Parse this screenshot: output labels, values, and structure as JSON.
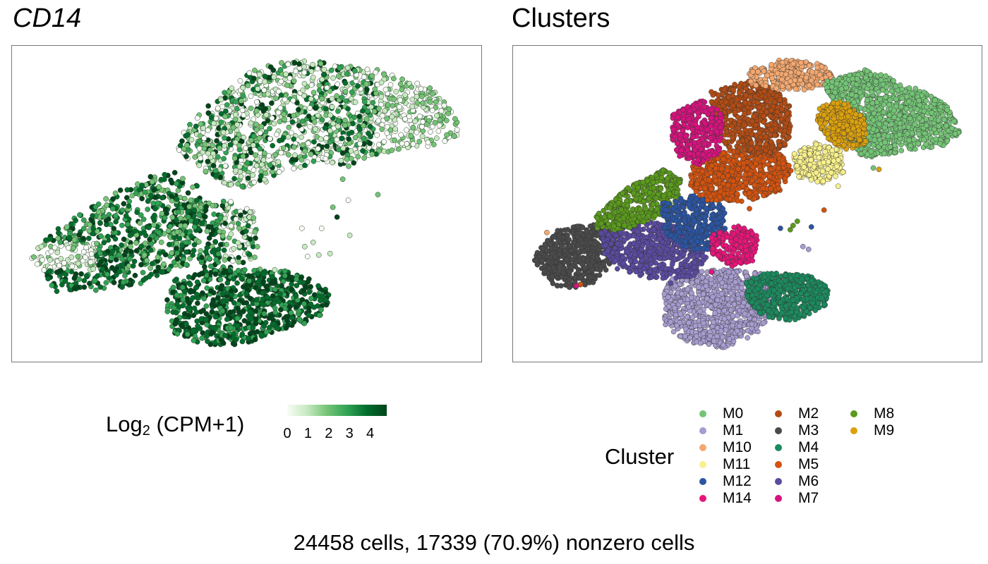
{
  "chart_data": [
    {
      "type": "scatter",
      "title": "CD14",
      "color_scale": {
        "title_main": "Log",
        "title_sub": "2",
        "title_tail": " (CPM+1)",
        "ticks": [
          "0",
          "1",
          "2",
          "3",
          "4"
        ],
        "min": 0,
        "max": 4.8,
        "colors": [
          "#f7fcf5",
          "#c7e9c0",
          "#74c476",
          "#31a354",
          "#006d2c",
          "#00441b"
        ]
      },
      "axes_visible": false,
      "grid": false,
      "legend_position": "bottom"
    },
    {
      "type": "scatter",
      "title": "Clusters",
      "legend_title": "Cluster",
      "legend_position": "bottom",
      "axes_visible": false,
      "grid": false,
      "series": [
        {
          "name": "M0",
          "color": "#74c476"
        },
        {
          "name": "M1",
          "color": "#a79ccf"
        },
        {
          "name": "M10",
          "color": "#f4a86f"
        },
        {
          "name": "M11",
          "color": "#f7f08c"
        },
        {
          "name": "M12",
          "color": "#2b55a2"
        },
        {
          "name": "M14",
          "color": "#e7157a"
        },
        {
          "name": "M2",
          "color": "#b24c14"
        },
        {
          "name": "M3",
          "color": "#4a4a4a"
        },
        {
          "name": "M4",
          "color": "#1b8a5e"
        },
        {
          "name": "M5",
          "color": "#d3530f"
        },
        {
          "name": "M6",
          "color": "#5a4aa0"
        },
        {
          "name": "M7",
          "color": "#d7127e"
        },
        {
          "name": "M8",
          "color": "#5a9a1c"
        },
        {
          "name": "M9",
          "color": "#dba00e"
        }
      ]
    }
  ],
  "footer": {
    "caption": "24458 cells, 17339 (70.9%) nonzero cells"
  }
}
